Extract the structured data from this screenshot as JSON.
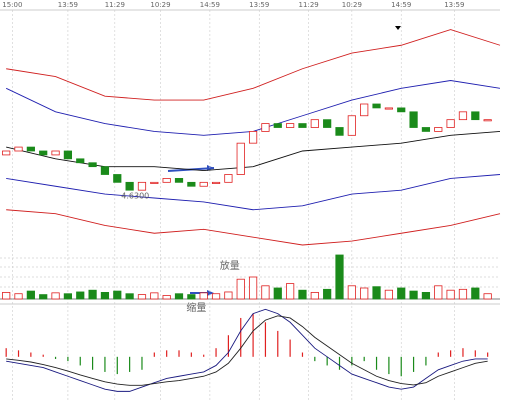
{
  "chart_data": [
    {
      "type": "candlestick",
      "xlim": [
        -0.5,
        40
      ],
      "ylim": [
        4.5,
        5.1
      ],
      "xticks": [
        {
          "value": 0.5,
          "label": "15:00"
        },
        {
          "value": 5,
          "label": "13:59"
        },
        {
          "value": 8.8,
          "label": "11:29"
        },
        {
          "value": 12.5,
          "label": "10:29"
        },
        {
          "value": 16.5,
          "label": "14:59"
        },
        {
          "value": 20.5,
          "label": "13:59"
        },
        {
          "value": 24.5,
          "label": "11:29"
        },
        {
          "value": 28,
          "label": "10:29"
        },
        {
          "value": 32,
          "label": "14:59"
        },
        {
          "value": 36.3,
          "label": "13:59"
        }
      ],
      "up_color": "#e02020",
      "down_color": "#1a8a1a",
      "open": [
        4.73,
        4.74,
        4.75,
        4.74,
        4.73,
        4.74,
        4.72,
        4.71,
        4.7,
        4.68,
        4.66,
        4.64,
        4.66,
        4.66,
        4.67,
        4.66,
        4.65,
        4.66,
        4.66,
        4.68,
        4.76,
        4.79,
        4.81,
        4.8,
        4.81,
        4.8,
        4.82,
        4.8,
        4.78,
        4.83,
        4.86,
        4.85,
        4.85,
        4.84,
        4.8,
        4.79,
        4.8,
        4.82,
        4.84,
        4.82
      ],
      "close": [
        4.74,
        4.75,
        4.74,
        4.73,
        4.74,
        4.72,
        4.71,
        4.7,
        4.68,
        4.66,
        4.64,
        4.66,
        4.66,
        4.67,
        4.66,
        4.65,
        4.66,
        4.66,
        4.68,
        4.76,
        4.79,
        4.81,
        4.8,
        4.81,
        4.8,
        4.82,
        4.8,
        4.78,
        4.83,
        4.86,
        4.85,
        4.85,
        4.84,
        4.8,
        4.79,
        4.8,
        4.82,
        4.84,
        4.82,
        4.82
      ],
      "series": [
        {
          "color": "#d02020",
          "x": [
            0,
            4,
            8,
            12,
            16,
            20,
            24,
            28,
            32,
            36,
            40
          ],
          "values": [
            4.95,
            4.93,
            4.88,
            4.87,
            4.87,
            4.9,
            4.95,
            4.99,
            5.01,
            5.05,
            5.01
          ]
        },
        {
          "color": "#2020b0",
          "x": [
            0,
            4,
            8,
            12,
            16,
            20,
            24,
            28,
            32,
            36,
            40
          ],
          "values": [
            4.9,
            4.84,
            4.81,
            4.79,
            4.78,
            4.79,
            4.83,
            4.87,
            4.9,
            4.92,
            4.9
          ]
        },
        {
          "color": "#111111",
          "x": [
            0,
            4,
            8,
            12,
            16,
            20,
            24,
            28,
            32,
            36,
            40
          ],
          "values": [
            4.75,
            4.72,
            4.7,
            4.7,
            4.69,
            4.7,
            4.74,
            4.75,
            4.76,
            4.78,
            4.79
          ]
        },
        {
          "color": "#2020b0",
          "x": [
            0,
            4,
            8,
            12,
            16,
            20,
            24,
            28,
            32,
            36,
            40
          ],
          "values": [
            4.67,
            4.65,
            4.63,
            4.62,
            4.61,
            4.59,
            4.6,
            4.63,
            4.64,
            4.67,
            4.68
          ]
        },
        {
          "color": "#d02020",
          "x": [
            0,
            4,
            8,
            12,
            16,
            20,
            24,
            28,
            32,
            36,
            40
          ],
          "values": [
            4.59,
            4.58,
            4.55,
            4.53,
            4.54,
            4.52,
            4.5,
            4.51,
            4.53,
            4.55,
            4.58
          ]
        }
      ],
      "annotation": {
        "text": "4.6300",
        "value": 4.63,
        "x": 9
      }
    },
    {
      "type": "volume",
      "ylim": [
        0,
        100
      ],
      "values": [
        15,
        12,
        18,
        10,
        14,
        12,
        16,
        20,
        15,
        18,
        12,
        10,
        14,
        8,
        12,
        10,
        14,
        12,
        16,
        45,
        50,
        30,
        25,
        35,
        20,
        15,
        22,
        100,
        30,
        25,
        28,
        20,
        25,
        18,
        15,
        30,
        20,
        22,
        25,
        12
      ],
      "annotations": [
        {
          "text": "放量",
          "x": 17.3
        },
        {
          "text": "缩量",
          "x": 14.6
        }
      ]
    },
    {
      "type": "macd",
      "ylim": [
        -1.0,
        1.2
      ],
      "hist": [
        0.2,
        0.15,
        0.1,
        0.05,
        -0.05,
        -0.1,
        -0.2,
        -0.3,
        -0.35,
        -0.4,
        -0.35,
        -0.3,
        0.1,
        0.15,
        0.15,
        0.1,
        0.05,
        0.2,
        0.5,
        0.9,
        1.0,
        0.8,
        0.6,
        0.4,
        0.1,
        -0.1,
        -0.2,
        -0.3,
        -0.2,
        -0.1,
        -0.3,
        -0.4,
        -0.45,
        -0.35,
        -0.2,
        0.1,
        0.15,
        0.2,
        0.15,
        0.1
      ],
      "series": [
        {
          "color": "#1a1a80",
          "values": [
            -0.1,
            -0.15,
            -0.2,
            -0.25,
            -0.35,
            -0.45,
            -0.55,
            -0.65,
            -0.75,
            -0.8,
            -0.8,
            -0.7,
            -0.6,
            -0.5,
            -0.45,
            -0.4,
            -0.35,
            -0.2,
            0.1,
            0.6,
            1.0,
            1.1,
            1.0,
            0.8,
            0.5,
            0.2,
            0.0,
            -0.2,
            -0.4,
            -0.5,
            -0.6,
            -0.7,
            -0.75,
            -0.7,
            -0.5,
            -0.3,
            -0.2,
            -0.1,
            -0.05,
            -0.05
          ]
        },
        {
          "color": "#222222",
          "values": [
            -0.05,
            -0.08,
            -0.12,
            -0.18,
            -0.25,
            -0.33,
            -0.42,
            -0.5,
            -0.58,
            -0.63,
            -0.66,
            -0.66,
            -0.62,
            -0.58,
            -0.55,
            -0.5,
            -0.45,
            -0.35,
            -0.15,
            0.2,
            0.6,
            0.85,
            0.95,
            0.9,
            0.7,
            0.45,
            0.25,
            0.05,
            -0.15,
            -0.3,
            -0.45,
            -0.55,
            -0.62,
            -0.65,
            -0.6,
            -0.45,
            -0.35,
            -0.25,
            -0.15,
            -0.1
          ]
        }
      ]
    }
  ]
}
